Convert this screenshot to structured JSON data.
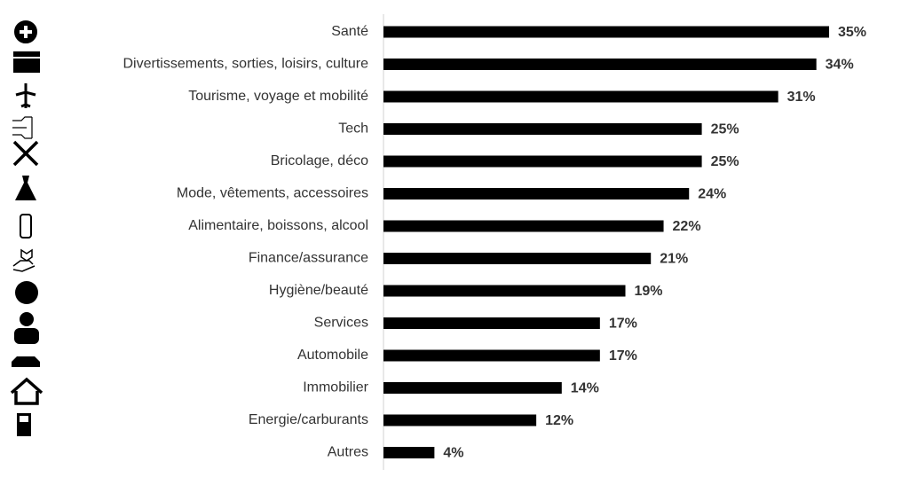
{
  "chart_data": {
    "type": "bar",
    "orientation": "horizontal",
    "categories": [
      "Santé",
      "Divertissements, sorties, loisirs, culture",
      "Tourisme, voyage et mobilité",
      "Tech",
      "Bricolage, déco",
      "Mode, vêtements, accessoires",
      "Alimentaire, boissons, alcool",
      "Finance/assurance",
      "Hygiène/beauté",
      "Services",
      "Automobile",
      "Immobilier",
      "Energie/carburants",
      "Autres"
    ],
    "values": [
      35,
      34,
      31,
      25,
      25,
      24,
      22,
      21,
      19,
      17,
      17,
      14,
      12,
      4
    ],
    "value_labels": [
      "35%",
      "34%",
      "31%",
      "25%",
      "25%",
      "24%",
      "22%",
      "21%",
      "19%",
      "17%",
      "17%",
      "14%",
      "12%",
      "4%"
    ],
    "color": "#000000"
  }
}
